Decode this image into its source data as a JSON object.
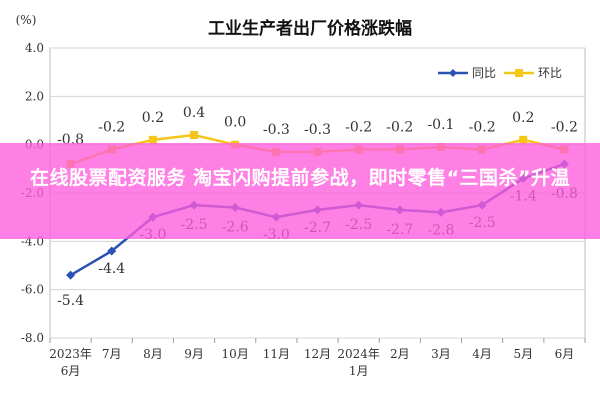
{
  "chart_data": {
    "type": "line",
    "title": "工业生产者出厂价格涨跌幅",
    "unit": "(%)",
    "ylim": [
      -8.0,
      4.0
    ],
    "yticks": [
      "4.0",
      "2.0",
      "0.0",
      "-2.0",
      "-4.0",
      "-6.0",
      "-8.0"
    ],
    "ytick_values": [
      4,
      2,
      0,
      -2,
      -4,
      -6,
      -8
    ],
    "categories": [
      [
        "2023年",
        "6月"
      ],
      [
        "7月"
      ],
      [
        "8月"
      ],
      [
        "9月"
      ],
      [
        "10月"
      ],
      [
        "11月"
      ],
      [
        "12月"
      ],
      [
        "2024年",
        "1月"
      ],
      [
        "2月"
      ],
      [
        "3月"
      ],
      [
        "4月"
      ],
      [
        "5月"
      ],
      [
        "6月"
      ]
    ],
    "series": [
      {
        "name": "同比",
        "color": "#2a52b3",
        "values": [
          -5.4,
          -4.4,
          -3.0,
          -2.5,
          -2.6,
          -3.0,
          -2.7,
          -2.5,
          -2.7,
          -2.8,
          -2.5,
          -1.4,
          -0.8
        ],
        "labels": [
          "-5.4",
          "-4.4",
          "-3.0",
          "-2.5",
          "-2.6",
          "-3.0",
          "-2.7",
          "-2.5",
          "-2.7",
          "-2.8",
          "-2.5",
          "-1.4",
          "-0.8"
        ]
      },
      {
        "name": "环比",
        "color": "#f5c518",
        "values": [
          -0.8,
          -0.2,
          0.2,
          0.4,
          0.0,
          -0.3,
          -0.3,
          -0.2,
          -0.2,
          -0.1,
          -0.2,
          0.2,
          -0.2
        ],
        "labels": [
          "-0.8",
          "-0.2",
          "0.2",
          "0.4",
          "0.0",
          "-0.3",
          "-0.3",
          "-0.2",
          "-0.2",
          "-0.1",
          "-0.2",
          "0.2",
          "-0.2"
        ]
      }
    ],
    "grid": true,
    "legend": "top-right"
  },
  "banner": {
    "text": "在线股票配资服务 淘宝闪购提前参战，即时零售“三国杀”升温",
    "color": "#ff5cdc"
  }
}
